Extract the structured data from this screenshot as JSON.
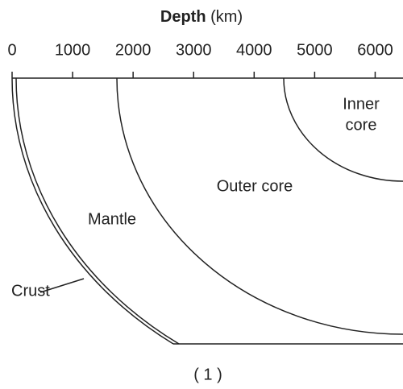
{
  "axis": {
    "title": "Depth",
    "unit": "(km)",
    "xlim": [
      0,
      6460
    ],
    "ticks": [
      0,
      1000,
      2000,
      3000,
      4000,
      5000,
      6000
    ]
  },
  "layers": {
    "inner_core": [
      "Inner",
      "core"
    ],
    "outer_core": "Outer core",
    "mantle": "Mantle",
    "crust": "Crust"
  },
  "caption": "( 1 )"
}
